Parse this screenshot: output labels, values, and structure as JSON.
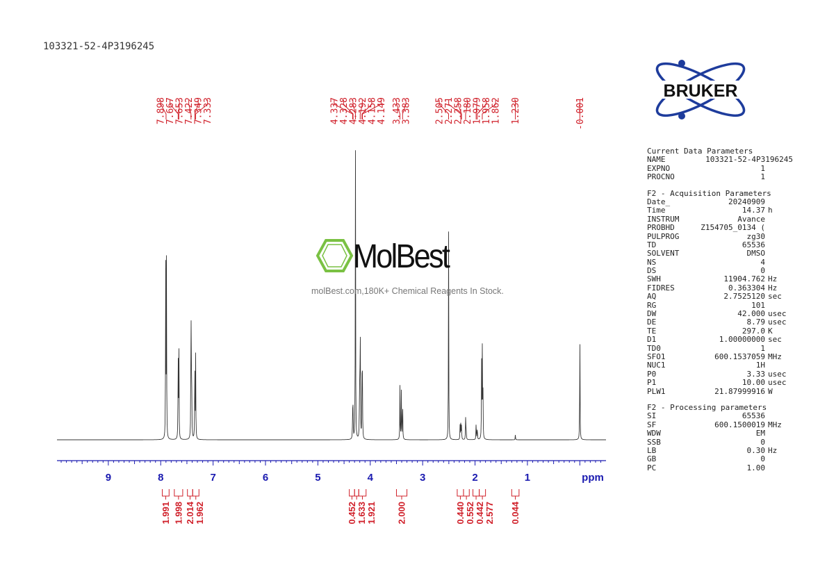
{
  "sample_id": "103321-52-4P3196245",
  "brand": {
    "logo_text": "BRUKER",
    "color": "#1e3c9c"
  },
  "watermark": {
    "name": "MolBest",
    "tagline": "molBest.com,180K+ Chemical Reagents In Stock.",
    "color": "#7ac143"
  },
  "colors": {
    "peak_label": "#d0202a",
    "axis": "#1a1ab0",
    "trace": "#333333"
  },
  "chart_data": {
    "type": "line",
    "title": "",
    "xlabel": "ppm",
    "x_reversed": true,
    "xlim": [
      9.98,
      -0.5
    ],
    "x_ticks": [
      9,
      8,
      7,
      6,
      5,
      4,
      3,
      2,
      1
    ],
    "peak_labels": [
      "7.898",
      "7.667",
      "7.653",
      "7.422",
      "7.349",
      "7.333",
      "4.337",
      "4.328",
      "4.283",
      "4.192",
      "4.158",
      "4.149",
      "3.433",
      "3.383",
      "2.505",
      "2.271",
      "2.258",
      "2.180",
      "1.979",
      "1.958",
      "1.862",
      "1.230",
      "-0.001"
    ],
    "peak_positions": [
      7.898,
      7.667,
      7.653,
      7.422,
      7.349,
      7.333,
      4.337,
      4.328,
      4.283,
      4.192,
      4.158,
      4.149,
      3.433,
      3.383,
      2.505,
      2.271,
      2.258,
      2.18,
      1.979,
      1.958,
      1.862,
      1.23,
      -0.001
    ],
    "spectrum_peaks": [
      {
        "ppm": 7.905,
        "h": 0.62
      },
      {
        "ppm": 7.89,
        "h": 0.6
      },
      {
        "ppm": 7.667,
        "h": 0.32
      },
      {
        "ppm": 7.653,
        "h": 0.32
      },
      {
        "ppm": 7.422,
        "h": 0.52
      },
      {
        "ppm": 7.41,
        "h": 0.3
      },
      {
        "ppm": 7.349,
        "h": 0.3
      },
      {
        "ppm": 7.333,
        "h": 0.28
      },
      {
        "ppm": 4.337,
        "h": 0.1
      },
      {
        "ppm": 4.328,
        "h": 0.1
      },
      {
        "ppm": 4.283,
        "h": 1.0
      },
      {
        "ppm": 4.205,
        "h": 0.2
      },
      {
        "ppm": 4.192,
        "h": 0.5
      },
      {
        "ppm": 4.158,
        "h": 0.22
      },
      {
        "ppm": 4.149,
        "h": 0.2
      },
      {
        "ppm": 3.433,
        "h": 0.18
      },
      {
        "ppm": 3.408,
        "h": 0.18
      },
      {
        "ppm": 3.383,
        "h": 0.16
      },
      {
        "ppm": 2.505,
        "h": 0.7
      },
      {
        "ppm": 2.285,
        "h": 0.05
      },
      {
        "ppm": 2.271,
        "h": 0.06
      },
      {
        "ppm": 2.258,
        "h": 0.05
      },
      {
        "ppm": 2.18,
        "h": 0.07
      },
      {
        "ppm": 2.17,
        "h": 0.05
      },
      {
        "ppm": 1.979,
        "h": 0.06
      },
      {
        "ppm": 1.958,
        "h": 0.05
      },
      {
        "ppm": 1.875,
        "h": 0.25
      },
      {
        "ppm": 1.862,
        "h": 0.3
      },
      {
        "ppm": 1.85,
        "h": 0.2
      },
      {
        "ppm": 1.23,
        "h": 0.018
      },
      {
        "ppm": -0.001,
        "h": 0.38
      }
    ],
    "integrals": [
      {
        "value": "1.991",
        "from": 7.97,
        "to": 7.84
      },
      {
        "value": "1.998",
        "from": 7.74,
        "to": 7.58
      },
      {
        "value": "2.014",
        "from": 7.49,
        "to": 7.39
      },
      {
        "value": "1.962",
        "from": 7.39,
        "to": 7.27
      },
      {
        "value": "0.452",
        "from": 4.4,
        "to": 4.3
      },
      {
        "value": "1.633",
        "from": 4.3,
        "to": 4.22
      },
      {
        "value": "1.921",
        "from": 4.22,
        "to": 4.08
      },
      {
        "value": "2.000",
        "from": 3.5,
        "to": 3.3
      },
      {
        "value": "0.440",
        "from": 2.34,
        "to": 2.22
      },
      {
        "value": "0.552",
        "from": 2.22,
        "to": 2.11
      },
      {
        "value": "0.442",
        "from": 2.04,
        "to": 1.92
      },
      {
        "value": "2.577",
        "from": 1.92,
        "to": 1.8
      },
      {
        "value": "0.044",
        "from": 1.3,
        "to": 1.16
      }
    ]
  },
  "params": {
    "sections": [
      {
        "title": "Current Data Parameters",
        "rows": [
          {
            "key": "NAME",
            "value": "103321-52-4P3196245",
            "unit": ""
          },
          {
            "key": "EXPNO",
            "value": "1",
            "unit": ""
          },
          {
            "key": "PROCNO",
            "value": "1",
            "unit": ""
          }
        ]
      },
      {
        "title": "F2 - Acquisition Parameters",
        "rows": [
          {
            "key": "Date_",
            "value": "20240909",
            "unit": ""
          },
          {
            "key": "Time",
            "value": "14.37",
            "unit": "h"
          },
          {
            "key": "INSTRUM",
            "value": "Avance",
            "unit": ""
          },
          {
            "key": "PROBHD",
            "value": "Z154705_0134 (",
            "unit": ""
          },
          {
            "key": "PULPROG",
            "value": "zg30",
            "unit": ""
          },
          {
            "key": "TD",
            "value": "65536",
            "unit": ""
          },
          {
            "key": "SOLVENT",
            "value": "DMSO",
            "unit": ""
          },
          {
            "key": "NS",
            "value": "4",
            "unit": ""
          },
          {
            "key": "DS",
            "value": "0",
            "unit": ""
          },
          {
            "key": "SWH",
            "value": "11904.762",
            "unit": "Hz"
          },
          {
            "key": "FIDRES",
            "value": "0.363304",
            "unit": "Hz"
          },
          {
            "key": "AQ",
            "value": "2.7525120",
            "unit": "sec"
          },
          {
            "key": "RG",
            "value": "101",
            "unit": ""
          },
          {
            "key": "DW",
            "value": "42.000",
            "unit": "usec"
          },
          {
            "key": "DE",
            "value": "8.79",
            "unit": "usec"
          },
          {
            "key": "TE",
            "value": "297.0",
            "unit": "K"
          },
          {
            "key": "D1",
            "value": "1.00000000",
            "unit": "sec"
          },
          {
            "key": "TD0",
            "value": "1",
            "unit": ""
          },
          {
            "key": "SFO1",
            "value": "600.1537059",
            "unit": "MHz"
          },
          {
            "key": "NUC1",
            "value": "1H",
            "unit": ""
          },
          {
            "key": "P0",
            "value": "3.33",
            "unit": "usec"
          },
          {
            "key": "P1",
            "value": "10.00",
            "unit": "usec"
          },
          {
            "key": "PLW1",
            "value": "21.87999916",
            "unit": "W"
          }
        ]
      },
      {
        "title": "F2 - Processing parameters",
        "rows": [
          {
            "key": "SI",
            "value": "65536",
            "unit": ""
          },
          {
            "key": "SF",
            "value": "600.1500019",
            "unit": "MHz"
          },
          {
            "key": "WDW",
            "value": "EM",
            "unit": ""
          },
          {
            "key": "SSB",
            "value": "0",
            "unit": ""
          },
          {
            "key": "LB",
            "value": "0.30",
            "unit": "Hz"
          },
          {
            "key": "GB",
            "value": "0",
            "unit": ""
          },
          {
            "key": "PC",
            "value": "1.00",
            "unit": ""
          }
        ]
      }
    ]
  }
}
